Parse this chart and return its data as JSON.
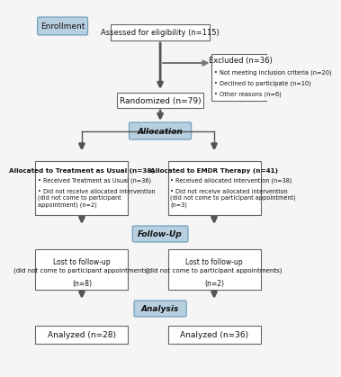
{
  "bg_color": "#f5f5f5",
  "box_bg": "#ffffff",
  "box_edge": "#666666",
  "blue_fill": "#b8cfe0",
  "blue_edge": "#6699bb",
  "enrollment_label": "Enrollment",
  "allocation_label": "Allocation",
  "followup_label": "Follow-Up",
  "analysis_label": "Analysis",
  "assess_text": "Assessed for eligibility (n=115)",
  "excluded_title": "Excluded (n=36)",
  "excluded_b1": "Not meeting inclusion criteria (n=20)",
  "excluded_b2": "Declined to participate (n=10)",
  "excluded_b3": "Other reasons (n=6)",
  "randomized_text": "Randomized (n=79)",
  "left_alloc_title": "Allocated to Treatment as Usual (n=38)",
  "left_alloc_b1": "Received Treatment as Usual (n=36)",
  "left_alloc_b2": "Did not receive allocated intervention\n(did not come to participant\nappointment) (n=2)",
  "right_alloc_title": "Allocated to EMDR Therapy (n=41)",
  "right_alloc_b1": "Received allocated intervention (n=38)",
  "right_alloc_b2": "Did not receive allocated intervention\n(did not come to participant appointment)\n(n=3)",
  "left_fu_line1": "Lost to follow-up",
  "left_fu_line2": "(did not come to participant appointments)",
  "left_fu_line3": "(n=8)",
  "right_fu_line1": "Lost to follow-up",
  "right_fu_line2": "(did not come to participant appointments)",
  "right_fu_line3": "(n=2)",
  "left_analysis": "Analyzed (n=28)",
  "right_analysis": "Analyzed (n=36)",
  "arrow_color": "#555555",
  "arrow_lw": 2.0
}
